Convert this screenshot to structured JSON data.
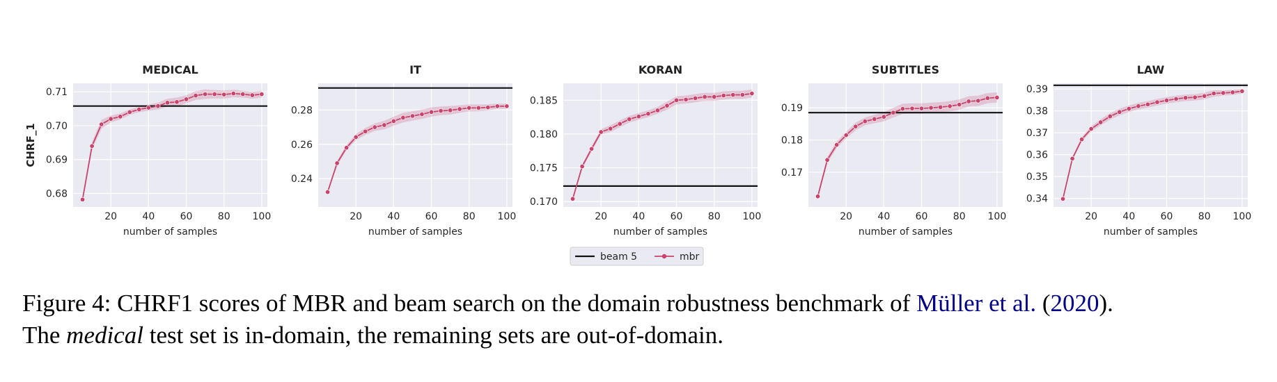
{
  "chart_data": {
    "type": "line",
    "ylabel": "CHRF_1",
    "xlabel": "number of samples",
    "x": [
      5,
      10,
      15,
      20,
      25,
      30,
      35,
      40,
      45,
      50,
      55,
      60,
      65,
      70,
      75,
      80,
      85,
      90,
      95,
      100
    ],
    "xticks": [
      20,
      40,
      60,
      80,
      100
    ],
    "legend": {
      "position": "bottom-center",
      "entries": [
        {
          "name": "beam 5",
          "color": "#111111",
          "marker": "none"
        },
        {
          "name": "mbr",
          "color": "#c9446c",
          "marker": "circle"
        }
      ]
    },
    "panels": [
      {
        "title": "MEDICAL",
        "xlim": [
          0,
          103
        ],
        "ylim": [
          0.676,
          0.7125
        ],
        "yticks": [
          0.68,
          0.69,
          0.7,
          0.71
        ],
        "ytick_labels": [
          "0.68",
          "0.69",
          "0.70",
          "0.71"
        ],
        "beam": 0.7058,
        "mbr": [
          0.6782,
          0.694,
          0.7004,
          0.702,
          0.7027,
          0.704,
          0.7048,
          0.7053,
          0.7058,
          0.7068,
          0.707,
          0.7078,
          0.7089,
          0.7093,
          0.7093,
          0.7092,
          0.7095,
          0.7093,
          0.709,
          0.7093
        ],
        "band": [
          0.0008,
          0.0012,
          0.0013,
          0.001,
          0.0009,
          0.0008,
          0.0008,
          0.0009,
          0.001,
          0.0012,
          0.0013,
          0.0012,
          0.0013,
          0.0014,
          0.0012,
          0.0012,
          0.0011,
          0.001,
          0.001,
          0.001
        ]
      },
      {
        "title": "IT",
        "xlim": [
          0,
          103
        ],
        "ylim": [
          0.2235,
          0.2955
        ],
        "yticks": [
          0.24,
          0.26,
          0.28
        ],
        "ytick_labels": [
          "0.24",
          "0.26",
          "0.28"
        ],
        "beam": 0.2928,
        "mbr": [
          0.2322,
          0.249,
          0.258,
          0.2642,
          0.2675,
          0.27,
          0.2712,
          0.2735,
          0.2755,
          0.2765,
          0.2775,
          0.2788,
          0.2795,
          0.2798,
          0.2805,
          0.2812,
          0.2812,
          0.2815,
          0.2822,
          0.2822
        ],
        "band": [
          0.0008,
          0.0015,
          0.0015,
          0.0018,
          0.002,
          0.0022,
          0.0025,
          0.0026,
          0.0028,
          0.0027,
          0.0027,
          0.0027,
          0.0025,
          0.0025,
          0.0022,
          0.002,
          0.002,
          0.0018,
          0.0015,
          0.0015
        ]
      },
      {
        "title": "KORAN",
        "xlim": [
          0,
          103
        ],
        "ylim": [
          0.1692,
          0.1875
        ],
        "yticks": [
          0.17,
          0.175,
          0.18,
          0.185
        ],
        "ytick_labels": [
          "0.170",
          "0.175",
          "0.180",
          "0.185"
        ],
        "beam": 0.1723,
        "mbr": [
          0.1704,
          0.1752,
          0.1778,
          0.1803,
          0.1808,
          0.1815,
          0.1822,
          0.1826,
          0.183,
          0.1835,
          0.1842,
          0.185,
          0.1851,
          0.1853,
          0.1855,
          0.1855,
          0.1857,
          0.1858,
          0.1858,
          0.186
        ],
        "band": [
          0.0002,
          0.0003,
          0.0004,
          0.0004,
          0.0005,
          0.0005,
          0.0005,
          0.0005,
          0.0005,
          0.0005,
          0.0006,
          0.0006,
          0.0006,
          0.0006,
          0.0006,
          0.0006,
          0.0006,
          0.0006,
          0.0006,
          0.0006
        ]
      },
      {
        "title": "SUBTITLES",
        "xlim": [
          0,
          103
        ],
        "ylim": [
          0.1592,
          0.1976
        ],
        "yticks": [
          0.17,
          0.18,
          0.19
        ],
        "ytick_labels": [
          "0.17",
          "0.18",
          "0.19"
        ],
        "beam": 0.1885,
        "mbr": [
          0.1625,
          0.1738,
          0.1785,
          0.1815,
          0.1842,
          0.1858,
          0.1865,
          0.1872,
          0.1885,
          0.1897,
          0.1898,
          0.1898,
          0.19,
          0.1902,
          0.1905,
          0.191,
          0.192,
          0.1922,
          0.193,
          0.1932
        ],
        "band": [
          0.0008,
          0.001,
          0.001,
          0.001,
          0.0012,
          0.0012,
          0.0013,
          0.0014,
          0.0015,
          0.0016,
          0.0016,
          0.0016,
          0.0016,
          0.0016,
          0.0016,
          0.0016,
          0.0016,
          0.0016,
          0.0016,
          0.0016
        ]
      },
      {
        "title": "LAW",
        "xlim": [
          0,
          103
        ],
        "ylim": [
          0.3361,
          0.3926
        ],
        "yticks": [
          0.34,
          0.35,
          0.36,
          0.37,
          0.38,
          0.39
        ],
        "ytick_labels": [
          "0.34",
          "0.35",
          "0.36",
          "0.37",
          "0.38",
          "0.39"
        ],
        "beam": 0.3917,
        "mbr": [
          0.3398,
          0.3582,
          0.367,
          0.3718,
          0.3748,
          0.3775,
          0.3795,
          0.381,
          0.3822,
          0.383,
          0.384,
          0.3848,
          0.3855,
          0.386,
          0.3862,
          0.3868,
          0.388,
          0.3882,
          0.3885,
          0.389
        ],
        "band": [
          0.0005,
          0.0008,
          0.001,
          0.0012,
          0.0014,
          0.0015,
          0.0015,
          0.0015,
          0.0015,
          0.0015,
          0.0015,
          0.0015,
          0.0015,
          0.0015,
          0.0015,
          0.0015,
          0.0015,
          0.0012,
          0.0012,
          0.001
        ]
      }
    ]
  },
  "caption": {
    "part1": "Figure 4: CHRF1 scores of MBR and beam search on the domain robustness benchmark of ",
    "cite_author": "Müller et al.",
    "cite_open": " (",
    "cite_year": "2020",
    "cite_close": ").",
    "part2": "The ",
    "italic": "medical",
    "part3": " test set is in-domain, the remaining sets are out-of-domain."
  }
}
